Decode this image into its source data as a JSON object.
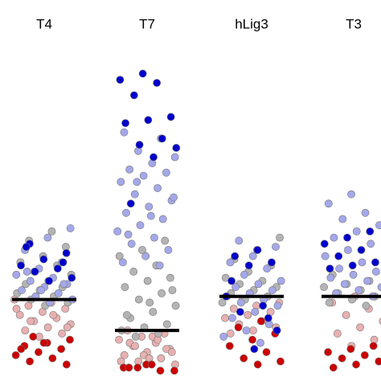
{
  "chart_data": {
    "type": "strip",
    "ylim": [
      0,
      100
    ],
    "groups": [
      {
        "label": "T4",
        "median": 24,
        "series": [
          {
            "color": "#e8b0b0",
            "values": [
              24,
              23,
              22,
              21,
              20,
              19,
              18,
              17,
              16,
              15,
              14,
              13,
              12,
              21,
              19,
              17,
              15
            ]
          },
          {
            "color": "#cc0000",
            "values": [
              12,
              11,
              10,
              9,
              8,
              7,
              6,
              5,
              4,
              3,
              10,
              8
            ]
          },
          {
            "color": "#b4b4b4",
            "values": [
              46,
              43,
              41,
              38,
              36,
              35,
              33,
              32,
              30,
              29,
              28,
              27,
              26,
              25,
              24,
              23,
              22
            ]
          },
          {
            "color": "#a4a8ea",
            "values": [
              47,
              44,
              40,
              36,
              34,
              32,
              31,
              30,
              29,
              28,
              27,
              26,
              25,
              24,
              23,
              33,
              29,
              27
            ]
          },
          {
            "color": "#0000cc",
            "values": [
              42,
              39,
              37,
              35,
              34,
              33,
              31,
              30,
              41,
              36
            ]
          }
        ]
      },
      {
        "label": "T7",
        "median": 14,
        "series": [
          {
            "color": "#e8b0b0",
            "values": [
              14,
              13,
              12,
              11,
              10,
              9,
              8,
              7,
              6,
              5,
              4,
              3,
              12,
              10,
              8,
              6,
              4,
              11,
              9,
              7,
              5
            ]
          },
          {
            "color": "#cc0000",
            "values": [
              3,
              2,
              1,
              2,
              1,
              3,
              2
            ]
          },
          {
            "color": "#b4b4b4",
            "values": [
              43,
              40,
              38,
              35,
              33,
              31,
              30,
              28,
              26,
              24,
              22,
              20,
              18,
              16,
              15,
              14,
              13,
              12,
              27,
              23,
              19
            ]
          },
          {
            "color": "#a4a8ea",
            "values": [
              78,
              76,
              72,
              70,
              68,
              66,
              65,
              64,
              62,
              60,
              58,
              56,
              54,
              52,
              50,
              48,
              46,
              44,
              42,
              40,
              38,
              36,
              35,
              62,
              57,
              51,
              45
            ]
          },
          {
            "color": "#0000cc",
            "values": [
              97,
              95,
              94,
              90,
              83,
              82,
              81,
              76,
              74,
              73,
              70,
              55
            ]
          }
        ]
      },
      {
        "label": "hLig3",
        "median": 25,
        "series": [
          {
            "color": "#e8b0b0",
            "values": [
              24,
              23,
              22,
              21,
              20,
              19,
              18,
              17,
              16,
              15,
              14,
              13
            ]
          },
          {
            "color": "#cc0000",
            "values": [
              17,
              15,
              13,
              11,
              9,
              7,
              5,
              4,
              3
            ]
          },
          {
            "color": "#b4b4b4",
            "values": [
              44,
              40,
              37,
              35,
              33,
              31,
              30,
              29,
              28,
              27,
              26,
              25,
              24,
              23
            ]
          },
          {
            "color": "#a4a8ea",
            "values": [
              43,
              41,
              38,
              36,
              34,
              32,
              30,
              29,
              28,
              27,
              26,
              25,
              24,
              23,
              22,
              20,
              18,
              16,
              14,
              12,
              10
            ]
          },
          {
            "color": "#0000cc",
            "values": [
              40,
              38,
              36,
              35,
              25,
              22,
              20,
              14,
              8,
              30,
              18
            ]
          }
        ]
      },
      {
        "label": "T3",
        "median": 25,
        "series": [
          {
            "color": "#e8b0b0",
            "values": [
              25,
              23,
              21,
              19,
              17,
              15,
              13,
              11,
              9
            ]
          },
          {
            "color": "#cc0000",
            "values": [
              9,
              8,
              7,
              6,
              5,
              4,
              3,
              2
            ]
          },
          {
            "color": "#b4b4b4",
            "values": [
              32,
              30,
              29,
              28,
              27,
              26,
              25,
              24,
              23,
              22
            ]
          },
          {
            "color": "#a4a8ea",
            "values": [
              58,
              55,
              52,
              50,
              48,
              46,
              44,
              42,
              40,
              38,
              36,
              34,
              33,
              32,
              31,
              30,
              29,
              28,
              27,
              26,
              25
            ]
          },
          {
            "color": "#0000cc",
            "values": [
              46,
              44,
              42,
              40,
              38,
              36,
              35,
              34
            ]
          }
        ]
      }
    ]
  }
}
